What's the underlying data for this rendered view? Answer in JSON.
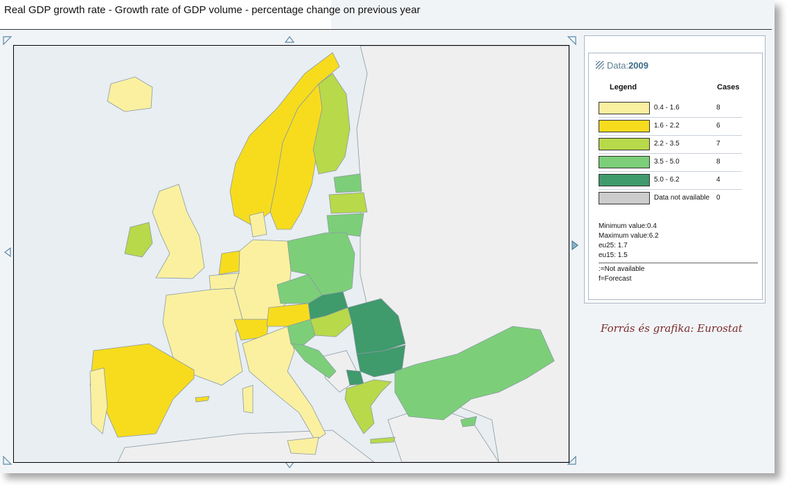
{
  "title": "Real GDP growth rate - Growth rate of GDP volume - percentage change on previous year",
  "panel": {
    "data_label": "Data:",
    "year": "2009",
    "legend_header": "Legend",
    "cases_header": "Cases",
    "classes": [
      {
        "label": "0.4 - 1.6",
        "count": "8",
        "color": "#faf0a0"
      },
      {
        "label": "1.6 - 2.2",
        "count": "6",
        "color": "#f7dc1e"
      },
      {
        "label": "2.2 - 3.5",
        "count": "7",
        "color": "#b8d94a"
      },
      {
        "label": "3.5 - 5.0",
        "count": "8",
        "color": "#7ccf78"
      },
      {
        "label": "5.0 - 6.2",
        "count": "4",
        "color": "#3f9a6c"
      },
      {
        "label": "Data not available",
        "count": "0",
        "color": "#cccccc"
      }
    ],
    "minimum": "Minimum value:0.4",
    "maximum": "Maximum value:6.2",
    "eu25": "eu25: 1.7",
    "eu15": "eu15: 1.5",
    "note_na": ":=Not available",
    "note_forecast": "f=Forecast"
  },
  "source": "Forrás és grafika: Eurostat",
  "colors": {
    "sea": "#e8eef1",
    "non_eu_land": "#efefef",
    "border": "#8b99a3"
  }
}
